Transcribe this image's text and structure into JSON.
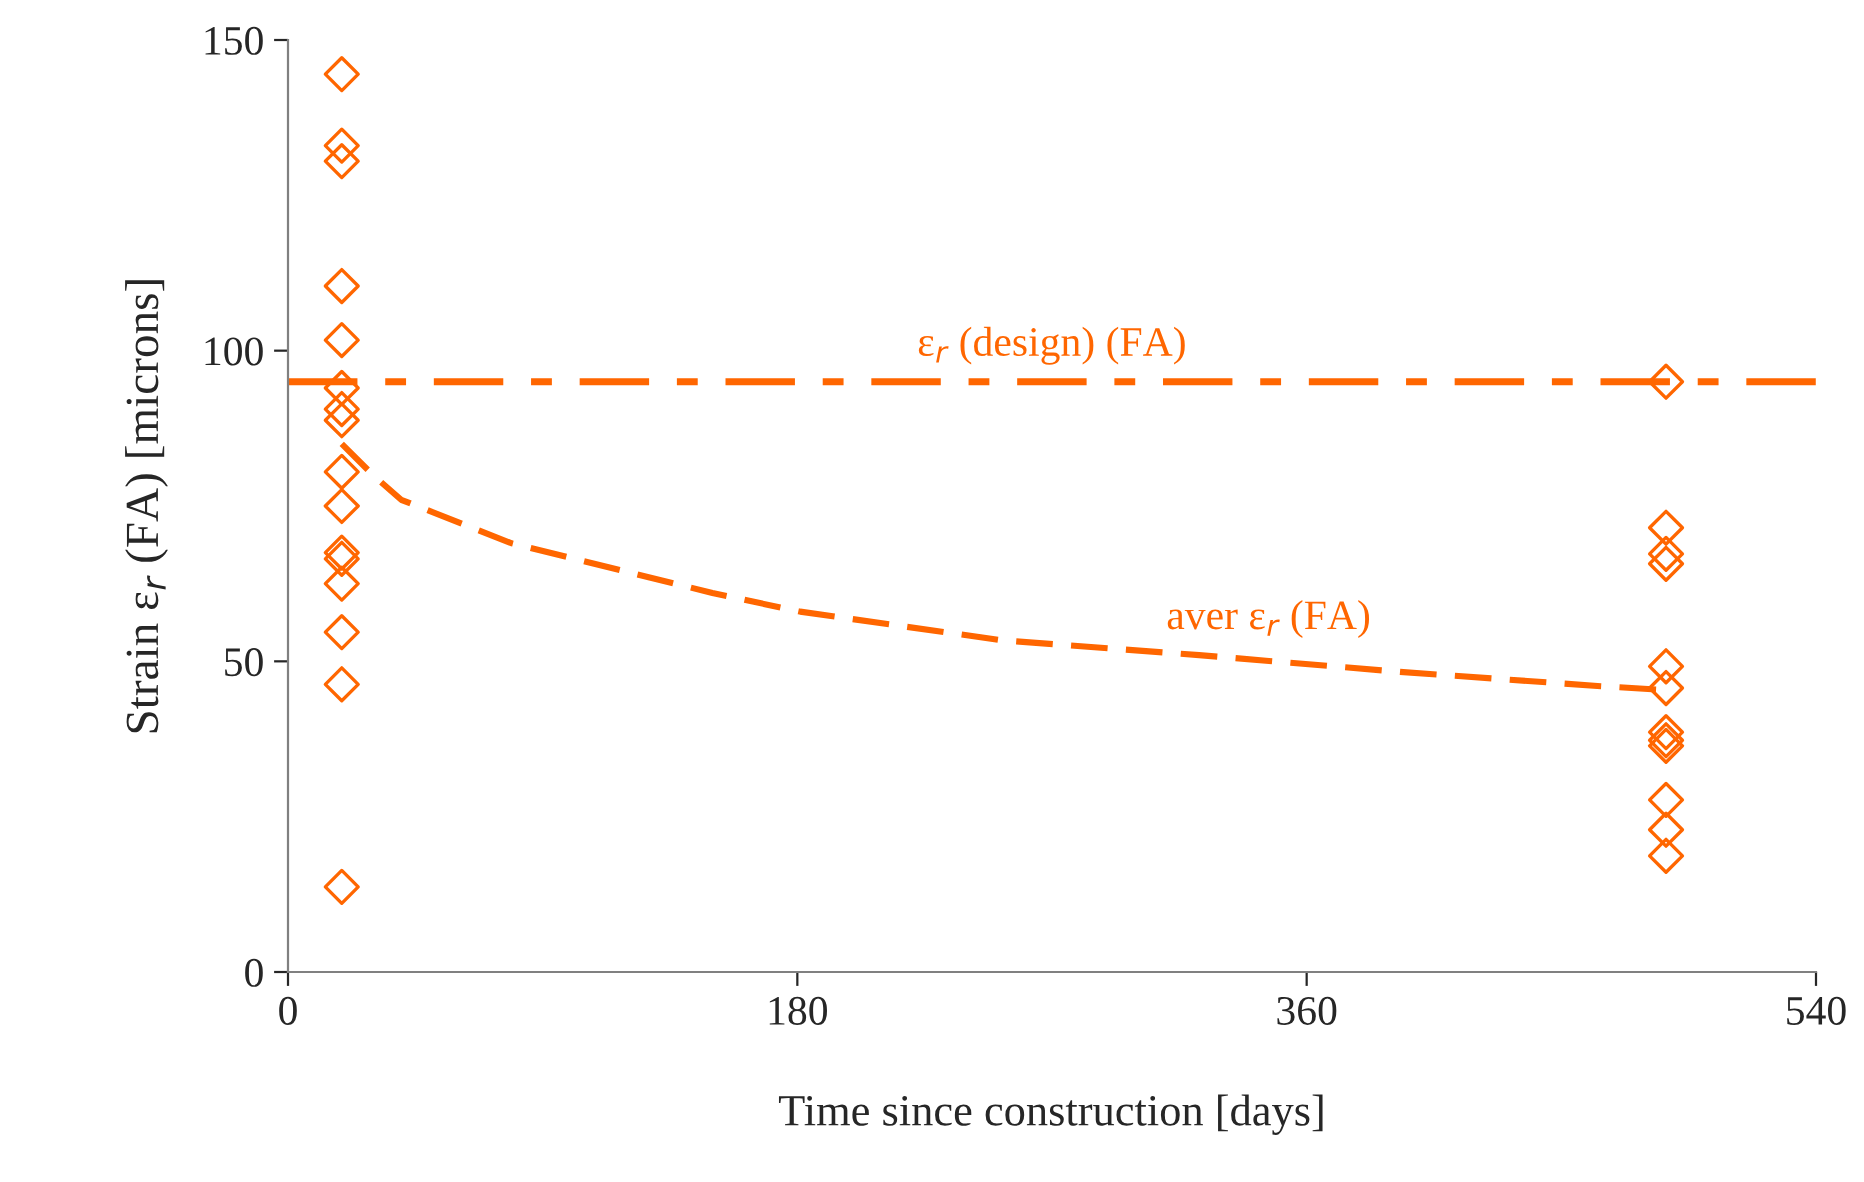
{
  "chart_data": {
    "type": "scatter",
    "xlabel": "Time since construction [days]",
    "ylabel": "Strain ε$_{r}$ (FA) [microns]",
    "xlim": [
      0,
      540
    ],
    "xticks": [
      0,
      180,
      360,
      540
    ],
    "ylim": [
      0,
      150
    ],
    "yticks": [
      0,
      50,
      100,
      150
    ],
    "grid": false,
    "marker": "diamond",
    "series": [
      {
        "color": "#ff6600",
        "x": [
          19,
          19,
          19,
          19,
          19,
          19,
          19,
          19,
          19,
          19,
          19,
          19,
          19,
          19,
          19,
          19
        ],
        "values": [
          144.5,
          133,
          130.5,
          110.4,
          101.7,
          94,
          90.6,
          88.8,
          80.5,
          75,
          67.5,
          66.5,
          62.5,
          54.7,
          46.3,
          13.7
        ]
      },
      {
        "color": "#ff6600",
        "x": [
          487,
          487,
          487,
          487,
          487,
          487,
          487,
          487,
          487,
          487,
          487,
          487
        ],
        "values": [
          95,
          71.5,
          67.3,
          65.7,
          49.2,
          45.7,
          38.6,
          37.3,
          36.4,
          27.7,
          22.9,
          18.7
        ]
      },
      {
        "type": "line",
        "name": "aver ε$_{r}$ (FA)",
        "color": "#ff6600",
        "line_style": "dashed",
        "marker": "none",
        "x": [
          19,
          30,
          40,
          79,
          150,
          181,
          252,
          322,
          393,
          464,
          486
        ],
        "values": [
          85,
          80,
          76,
          69,
          61,
          58,
          53.4,
          51,
          48.3,
          46,
          45.4
        ]
      }
    ],
    "ref_lines": [
      {
        "axis": "y",
        "value": 95,
        "label": "ε$_{r}$ (design) (FA)",
        "color": "#ff6600",
        "line_style": "dashed"
      }
    ]
  }
}
